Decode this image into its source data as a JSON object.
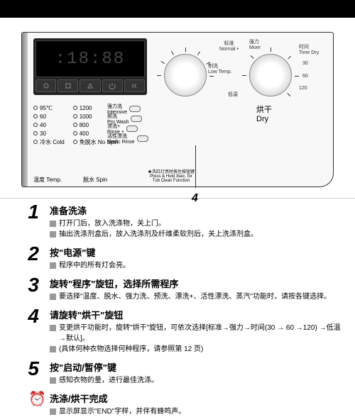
{
  "panel": {
    "display_digits": ":18:88",
    "dial_labels": {
      "top_center": "标准\nNormal •",
      "top_right": "强力\nMore",
      "right": "时间\nTime Dry",
      "r30": "30",
      "r60": "60",
      "r120": "120",
      "left": "制洗\nLow Temp.",
      "bottom": "低温"
    },
    "dry_label": "烘干\nDry",
    "left_col1": [
      "95℃",
      "60",
      "40",
      "30",
      "冷水 Cold"
    ],
    "left_col2": [
      "1200",
      "1000",
      "800",
      "400",
      "免脱水 No Spin"
    ],
    "bottom_labels": [
      "温度 Temp.",
      "脱水 Spin"
    ],
    "mid_opts": [
      "强力洗\nIntensive",
      "预洗\nPro Wash",
      "漂洗+\nRinse +",
      "活性漂洗\nMedic Rinse"
    ],
    "press_hold": "★洗红灯亮时按住按钮键\nPress & Hold 3sec. for\nTub Clean Function",
    "arrow_num": "4"
  },
  "steps": [
    {
      "num": "1",
      "title": "准备洗涤",
      "lines": [
        "打开门后，放入洗涤物，关上门。",
        "抽出洗涤剂盒后，放入洗涤剂及纤维柔软剂后，关上洗涤剂盒。"
      ]
    },
    {
      "num": "2",
      "title": "按\"电源\"键",
      "lines": [
        "程序中的所有灯会亮。"
      ]
    },
    {
      "num": "3",
      "title": "旋转\"程序\"旋钮，选择所需程序",
      "lines": [
        "要选择\"温度、脱水、强力洗、预洗、漂洗+、活性漂洗、蒸汽\"功能时，请按各键选择。"
      ]
    },
    {
      "num": "4",
      "title": "请旋转\"烘干\"旋钮",
      "lines": [
        "变更烘干功能时，旋转\"烘干\"旋钮，可依次选择[标准→强力→时间(30 → 60 →120) →低温 →默认]。",
        "(具体何种衣物选择何种程序，请参照第 12 页)"
      ]
    },
    {
      "num": "5",
      "title": "按\"启动/暂停\"键",
      "lines": [
        "感知衣物的量，进行最佳洗涤。"
      ]
    },
    {
      "num": "⏰",
      "title": "洗涤/烘干完成",
      "lines": [
        "显示屏显示\"END\"字样，并伴有蜂鸣声。"
      ],
      "is_icon": true
    }
  ]
}
